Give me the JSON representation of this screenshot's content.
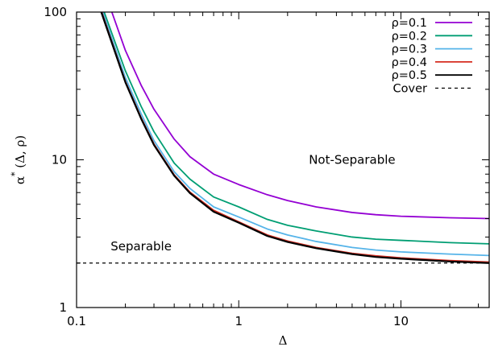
{
  "chart_data": {
    "type": "line",
    "title": "",
    "xlabel": "Δ",
    "ylabel": "α*(Δ, ρ)",
    "ylabel_parts": {
      "base": "α",
      "sup": "*",
      "args": " (Δ, ρ)"
    },
    "xscale": "log",
    "yscale": "log",
    "xlim": [
      0.1,
      35
    ],
    "ylim": [
      1,
      100
    ],
    "x_ticks": [
      0.1,
      1,
      10
    ],
    "x_tick_labels": [
      "0.1",
      "1",
      "10"
    ],
    "y_ticks": [
      1,
      10,
      100
    ],
    "y_tick_labels": [
      "1",
      "10",
      "100"
    ],
    "grid": false,
    "legend_position": "top-right",
    "annotations": [
      {
        "text": "Not-Separable",
        "x": 5,
        "y": 10
      },
      {
        "text": "Separable",
        "x": 0.25,
        "y": 2.6
      }
    ],
    "series": [
      {
        "name": "ρ=0.1",
        "color": "#9400d3",
        "x": [
          0.165,
          0.2,
          0.25,
          0.3,
          0.4,
          0.5,
          0.7,
          1,
          1.5,
          2,
          3,
          5,
          7,
          10,
          20,
          35
        ],
        "y": [
          100,
          55,
          32,
          22,
          13.8,
          10.5,
          8,
          6.8,
          5.8,
          5.3,
          4.8,
          4.4,
          4.25,
          4.15,
          4.05,
          4.0
        ]
      },
      {
        "name": "ρ=0.2",
        "color": "#009e73",
        "x": [
          0.148,
          0.2,
          0.25,
          0.3,
          0.4,
          0.5,
          0.7,
          1,
          1.5,
          2,
          3,
          5,
          7,
          10,
          20,
          35
        ],
        "y": [
          100,
          40,
          23,
          15.5,
          9.5,
          7.4,
          5.6,
          4.8,
          3.95,
          3.6,
          3.3,
          3.0,
          2.9,
          2.85,
          2.75,
          2.7
        ]
      },
      {
        "name": "ρ=0.3",
        "color": "#56b4e9",
        "x": [
          0.145,
          0.2,
          0.25,
          0.3,
          0.4,
          0.5,
          0.7,
          1,
          1.5,
          2,
          3,
          5,
          7,
          10,
          20,
          35
        ],
        "y": [
          100,
          36,
          20.5,
          13.5,
          8.3,
          6.4,
          4.8,
          4.1,
          3.4,
          3.1,
          2.8,
          2.55,
          2.45,
          2.38,
          2.3,
          2.25
        ]
      },
      {
        "name": "ρ=0.4",
        "color": "#d62d20",
        "x": [
          0.143,
          0.2,
          0.25,
          0.3,
          0.4,
          0.5,
          0.7,
          1,
          1.5,
          2,
          3,
          5,
          7,
          10,
          20,
          35
        ],
        "y": [
          100,
          34,
          19.3,
          12.8,
          7.9,
          6.05,
          4.55,
          3.8,
          3.1,
          2.82,
          2.55,
          2.33,
          2.24,
          2.17,
          2.08,
          2.03
        ]
      },
      {
        "name": "ρ=0.5",
        "color": "#000000",
        "x": [
          0.142,
          0.2,
          0.25,
          0.3,
          0.4,
          0.5,
          0.7,
          1,
          1.5,
          2,
          3,
          5,
          7,
          10,
          20,
          35
        ],
        "y": [
          100,
          33.5,
          19,
          12.6,
          7.8,
          5.95,
          4.45,
          3.75,
          3.05,
          2.78,
          2.52,
          2.3,
          2.2,
          2.14,
          2.05,
          2.0
        ]
      }
    ],
    "reference_line": {
      "name": "Cover",
      "y": 2,
      "color": "#000000",
      "style": "dashed"
    }
  }
}
